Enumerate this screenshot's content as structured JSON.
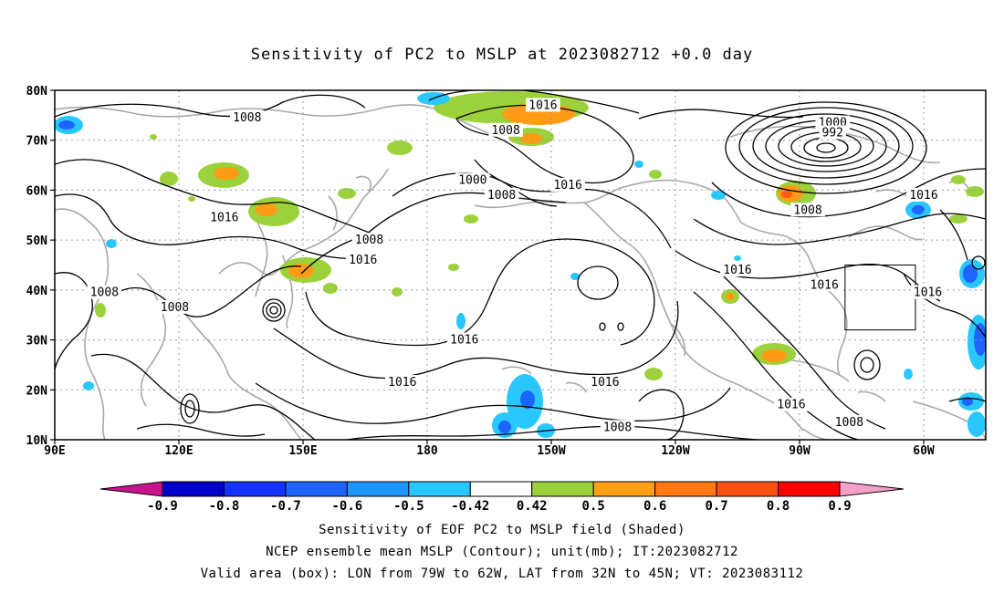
{
  "title": "Sensitivity of PC2 to MSLP at 2023082712 +0.0 day",
  "map": {
    "lat_labels": [
      "80N",
      "70N",
      "60N",
      "50N",
      "40N",
      "30N",
      "20N",
      "10N"
    ],
    "lat_values": [
      80,
      70,
      60,
      50,
      40,
      30,
      20,
      10
    ],
    "lon_labels": [
      "90E",
      "120E",
      "150E",
      "180",
      "150W",
      "120W",
      "90W",
      "60W"
    ],
    "lon_values": [
      90,
      120,
      150,
      180,
      210,
      240,
      270,
      300
    ],
    "lon_range": [
      90,
      315
    ],
    "lat_range": [
      10,
      80
    ],
    "contour_labels": [
      {
        "text": "1008",
        "lon": 136.5,
        "lat": 74.5
      },
      {
        "text": "1016",
        "lon": 208,
        "lat": 77
      },
      {
        "text": "1008",
        "lon": 199,
        "lat": 72
      },
      {
        "text": "1000",
        "lon": 278,
        "lat": 73.5
      },
      {
        "text": "992",
        "lon": 278,
        "lat": 71.5
      },
      {
        "text": "1000",
        "lon": 191,
        "lat": 62
      },
      {
        "text": "1008",
        "lon": 198,
        "lat": 59
      },
      {
        "text": "1016",
        "lon": 214,
        "lat": 61
      },
      {
        "text": "1008",
        "lon": 272,
        "lat": 56
      },
      {
        "text": "1016",
        "lon": 300,
        "lat": 59
      },
      {
        "text": "1016",
        "lon": 131,
        "lat": 54.5
      },
      {
        "text": "1008",
        "lon": 166,
        "lat": 50
      },
      {
        "text": "1016",
        "lon": 164.5,
        "lat": 46
      },
      {
        "text": "1016",
        "lon": 255,
        "lat": 44
      },
      {
        "text": "1016",
        "lon": 276,
        "lat": 41
      },
      {
        "text": "1016",
        "lon": 301,
        "lat": 39.5
      },
      {
        "text": "1008",
        "lon": 102,
        "lat": 39.5
      },
      {
        "text": "1008",
        "lon": 119,
        "lat": 36.5
      },
      {
        "text": "1016",
        "lon": 189,
        "lat": 30
      },
      {
        "text": "1016",
        "lon": 174,
        "lat": 21.5
      },
      {
        "text": "1016",
        "lon": 223,
        "lat": 21.5
      },
      {
        "text": "1016",
        "lon": 268,
        "lat": 17
      },
      {
        "text": "1008",
        "lon": 226,
        "lat": 12.5
      },
      {
        "text": "1008",
        "lon": 282,
        "lat": 13.5
      }
    ],
    "valid_box": {
      "lon_min": 281,
      "lon_max": 298,
      "lat_min": 32,
      "lat_max": 45
    },
    "shading_colors": {
      "dark_blue": "#0a0ac8",
      "blue": "#1e64ff",
      "light_blue": "#28c8ff",
      "green": "#9bd23c",
      "orange": "#ff9b14",
      "red_orange": "#ff5a14"
    }
  },
  "colorbar": {
    "labels": [
      "-0.9",
      "-0.8",
      "-0.7",
      "-0.6",
      "-0.5",
      "-0.42",
      "0.42",
      "0.5",
      "0.6",
      "0.7",
      "0.8",
      "0.9"
    ],
    "colors": [
      "#0000c8",
      "#1432ff",
      "#1e64ff",
      "#1e96ff",
      "#28c8ff",
      "#ffffff",
      "#9bd23c",
      "#ffa014",
      "#ff7814",
      "#ff5014",
      "#ff0000"
    ],
    "low_end_color": "#c8148c",
    "high_end_color": "#f5a0c8"
  },
  "captions": {
    "line1": "Sensitivity of EOF PC2 to MSLP field (Shaded)",
    "line2": "NCEP ensemble mean MSLP (Contour); unit(mb); IT:2023082712",
    "line3": "Valid area (box): LON from 79W to 62W, LAT from 32N to 45N; VT: 2023083112"
  }
}
